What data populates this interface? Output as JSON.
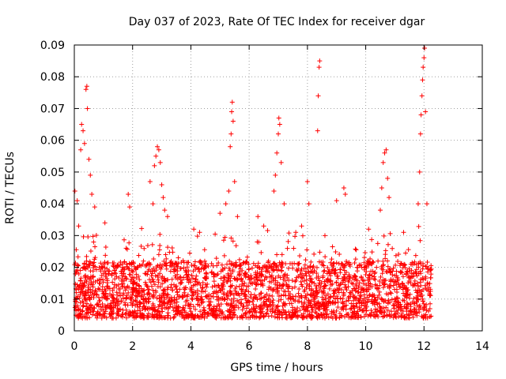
{
  "chart_data": {
    "type": "scatter",
    "title": "Day 037 of 2023, Rate Of TEC Index for receiver dgar",
    "xlabel": "GPS time / hours",
    "ylabel": "ROTI / TECUs",
    "xlim": [
      0,
      14
    ],
    "ylim": [
      0,
      0.09
    ],
    "x_ticks": [
      "0",
      "2",
      "4",
      "6",
      "8",
      "10",
      "12",
      "14"
    ],
    "y_ticks": [
      "0",
      "0.01",
      "0.02",
      "0.03",
      "0.04",
      "0.05",
      "0.06",
      "0.07",
      "0.08",
      "0.09"
    ],
    "grid": true,
    "marker": "plus",
    "color": "#ff0000",
    "x_range_of_data": [
      0,
      12.25
    ],
    "baseline_band": [
      0.004,
      0.022
    ],
    "notable_points": [
      {
        "x": 0.02,
        "y": 0.044
      },
      {
        "x": 0.1,
        "y": 0.041
      },
      {
        "x": 0.15,
        "y": 0.033
      },
      {
        "x": 0.22,
        "y": 0.057
      },
      {
        "x": 0.25,
        "y": 0.065
      },
      {
        "x": 0.3,
        "y": 0.063
      },
      {
        "x": 0.35,
        "y": 0.059
      },
      {
        "x": 0.4,
        "y": 0.076
      },
      {
        "x": 0.43,
        "y": 0.077
      },
      {
        "x": 0.45,
        "y": 0.07
      },
      {
        "x": 0.5,
        "y": 0.054
      },
      {
        "x": 0.55,
        "y": 0.049
      },
      {
        "x": 0.6,
        "y": 0.043
      },
      {
        "x": 0.7,
        "y": 0.039
      },
      {
        "x": 1.05,
        "y": 0.034
      },
      {
        "x": 1.85,
        "y": 0.043
      },
      {
        "x": 1.9,
        "y": 0.039
      },
      {
        "x": 2.6,
        "y": 0.047
      },
      {
        "x": 2.7,
        "y": 0.04
      },
      {
        "x": 2.75,
        "y": 0.052
      },
      {
        "x": 2.8,
        "y": 0.055
      },
      {
        "x": 2.85,
        "y": 0.058
      },
      {
        "x": 2.9,
        "y": 0.057
      },
      {
        "x": 2.95,
        "y": 0.053
      },
      {
        "x": 3.0,
        "y": 0.046
      },
      {
        "x": 3.05,
        "y": 0.042
      },
      {
        "x": 3.1,
        "y": 0.038
      },
      {
        "x": 3.2,
        "y": 0.036
      },
      {
        "x": 4.1,
        "y": 0.032
      },
      {
        "x": 4.3,
        "y": 0.031
      },
      {
        "x": 5.0,
        "y": 0.037
      },
      {
        "x": 5.2,
        "y": 0.04
      },
      {
        "x": 5.3,
        "y": 0.044
      },
      {
        "x": 5.35,
        "y": 0.058
      },
      {
        "x": 5.38,
        "y": 0.062
      },
      {
        "x": 5.4,
        "y": 0.069
      },
      {
        "x": 5.42,
        "y": 0.072
      },
      {
        "x": 5.45,
        "y": 0.066
      },
      {
        "x": 5.5,
        "y": 0.047
      },
      {
        "x": 5.6,
        "y": 0.036
      },
      {
        "x": 6.3,
        "y": 0.036
      },
      {
        "x": 6.5,
        "y": 0.033
      },
      {
        "x": 6.85,
        "y": 0.044
      },
      {
        "x": 6.9,
        "y": 0.049
      },
      {
        "x": 6.95,
        "y": 0.056
      },
      {
        "x": 7.0,
        "y": 0.062
      },
      {
        "x": 7.02,
        "y": 0.067
      },
      {
        "x": 7.05,
        "y": 0.065
      },
      {
        "x": 7.1,
        "y": 0.053
      },
      {
        "x": 7.2,
        "y": 0.04
      },
      {
        "x": 7.6,
        "y": 0.031
      },
      {
        "x": 7.8,
        "y": 0.033
      },
      {
        "x": 8.0,
        "y": 0.047
      },
      {
        "x": 8.05,
        "y": 0.04
      },
      {
        "x": 8.35,
        "y": 0.063
      },
      {
        "x": 8.37,
        "y": 0.074
      },
      {
        "x": 8.4,
        "y": 0.083
      },
      {
        "x": 8.42,
        "y": 0.085
      },
      {
        "x": 8.6,
        "y": 0.03
      },
      {
        "x": 9.0,
        "y": 0.041
      },
      {
        "x": 9.25,
        "y": 0.045
      },
      {
        "x": 9.3,
        "y": 0.043
      },
      {
        "x": 10.1,
        "y": 0.032
      },
      {
        "x": 10.5,
        "y": 0.038
      },
      {
        "x": 10.55,
        "y": 0.045
      },
      {
        "x": 10.6,
        "y": 0.053
      },
      {
        "x": 10.65,
        "y": 0.056
      },
      {
        "x": 10.7,
        "y": 0.057
      },
      {
        "x": 10.75,
        "y": 0.048
      },
      {
        "x": 10.8,
        "y": 0.042
      },
      {
        "x": 11.3,
        "y": 0.031
      },
      {
        "x": 11.8,
        "y": 0.04
      },
      {
        "x": 11.85,
        "y": 0.05
      },
      {
        "x": 11.88,
        "y": 0.062
      },
      {
        "x": 11.9,
        "y": 0.068
      },
      {
        "x": 11.93,
        "y": 0.074
      },
      {
        "x": 11.95,
        "y": 0.079
      },
      {
        "x": 11.97,
        "y": 0.083
      },
      {
        "x": 12.0,
        "y": 0.086
      },
      {
        "x": 12.02,
        "y": 0.089
      },
      {
        "x": 12.05,
        "y": 0.069
      },
      {
        "x": 12.1,
        "y": 0.04
      }
    ]
  }
}
